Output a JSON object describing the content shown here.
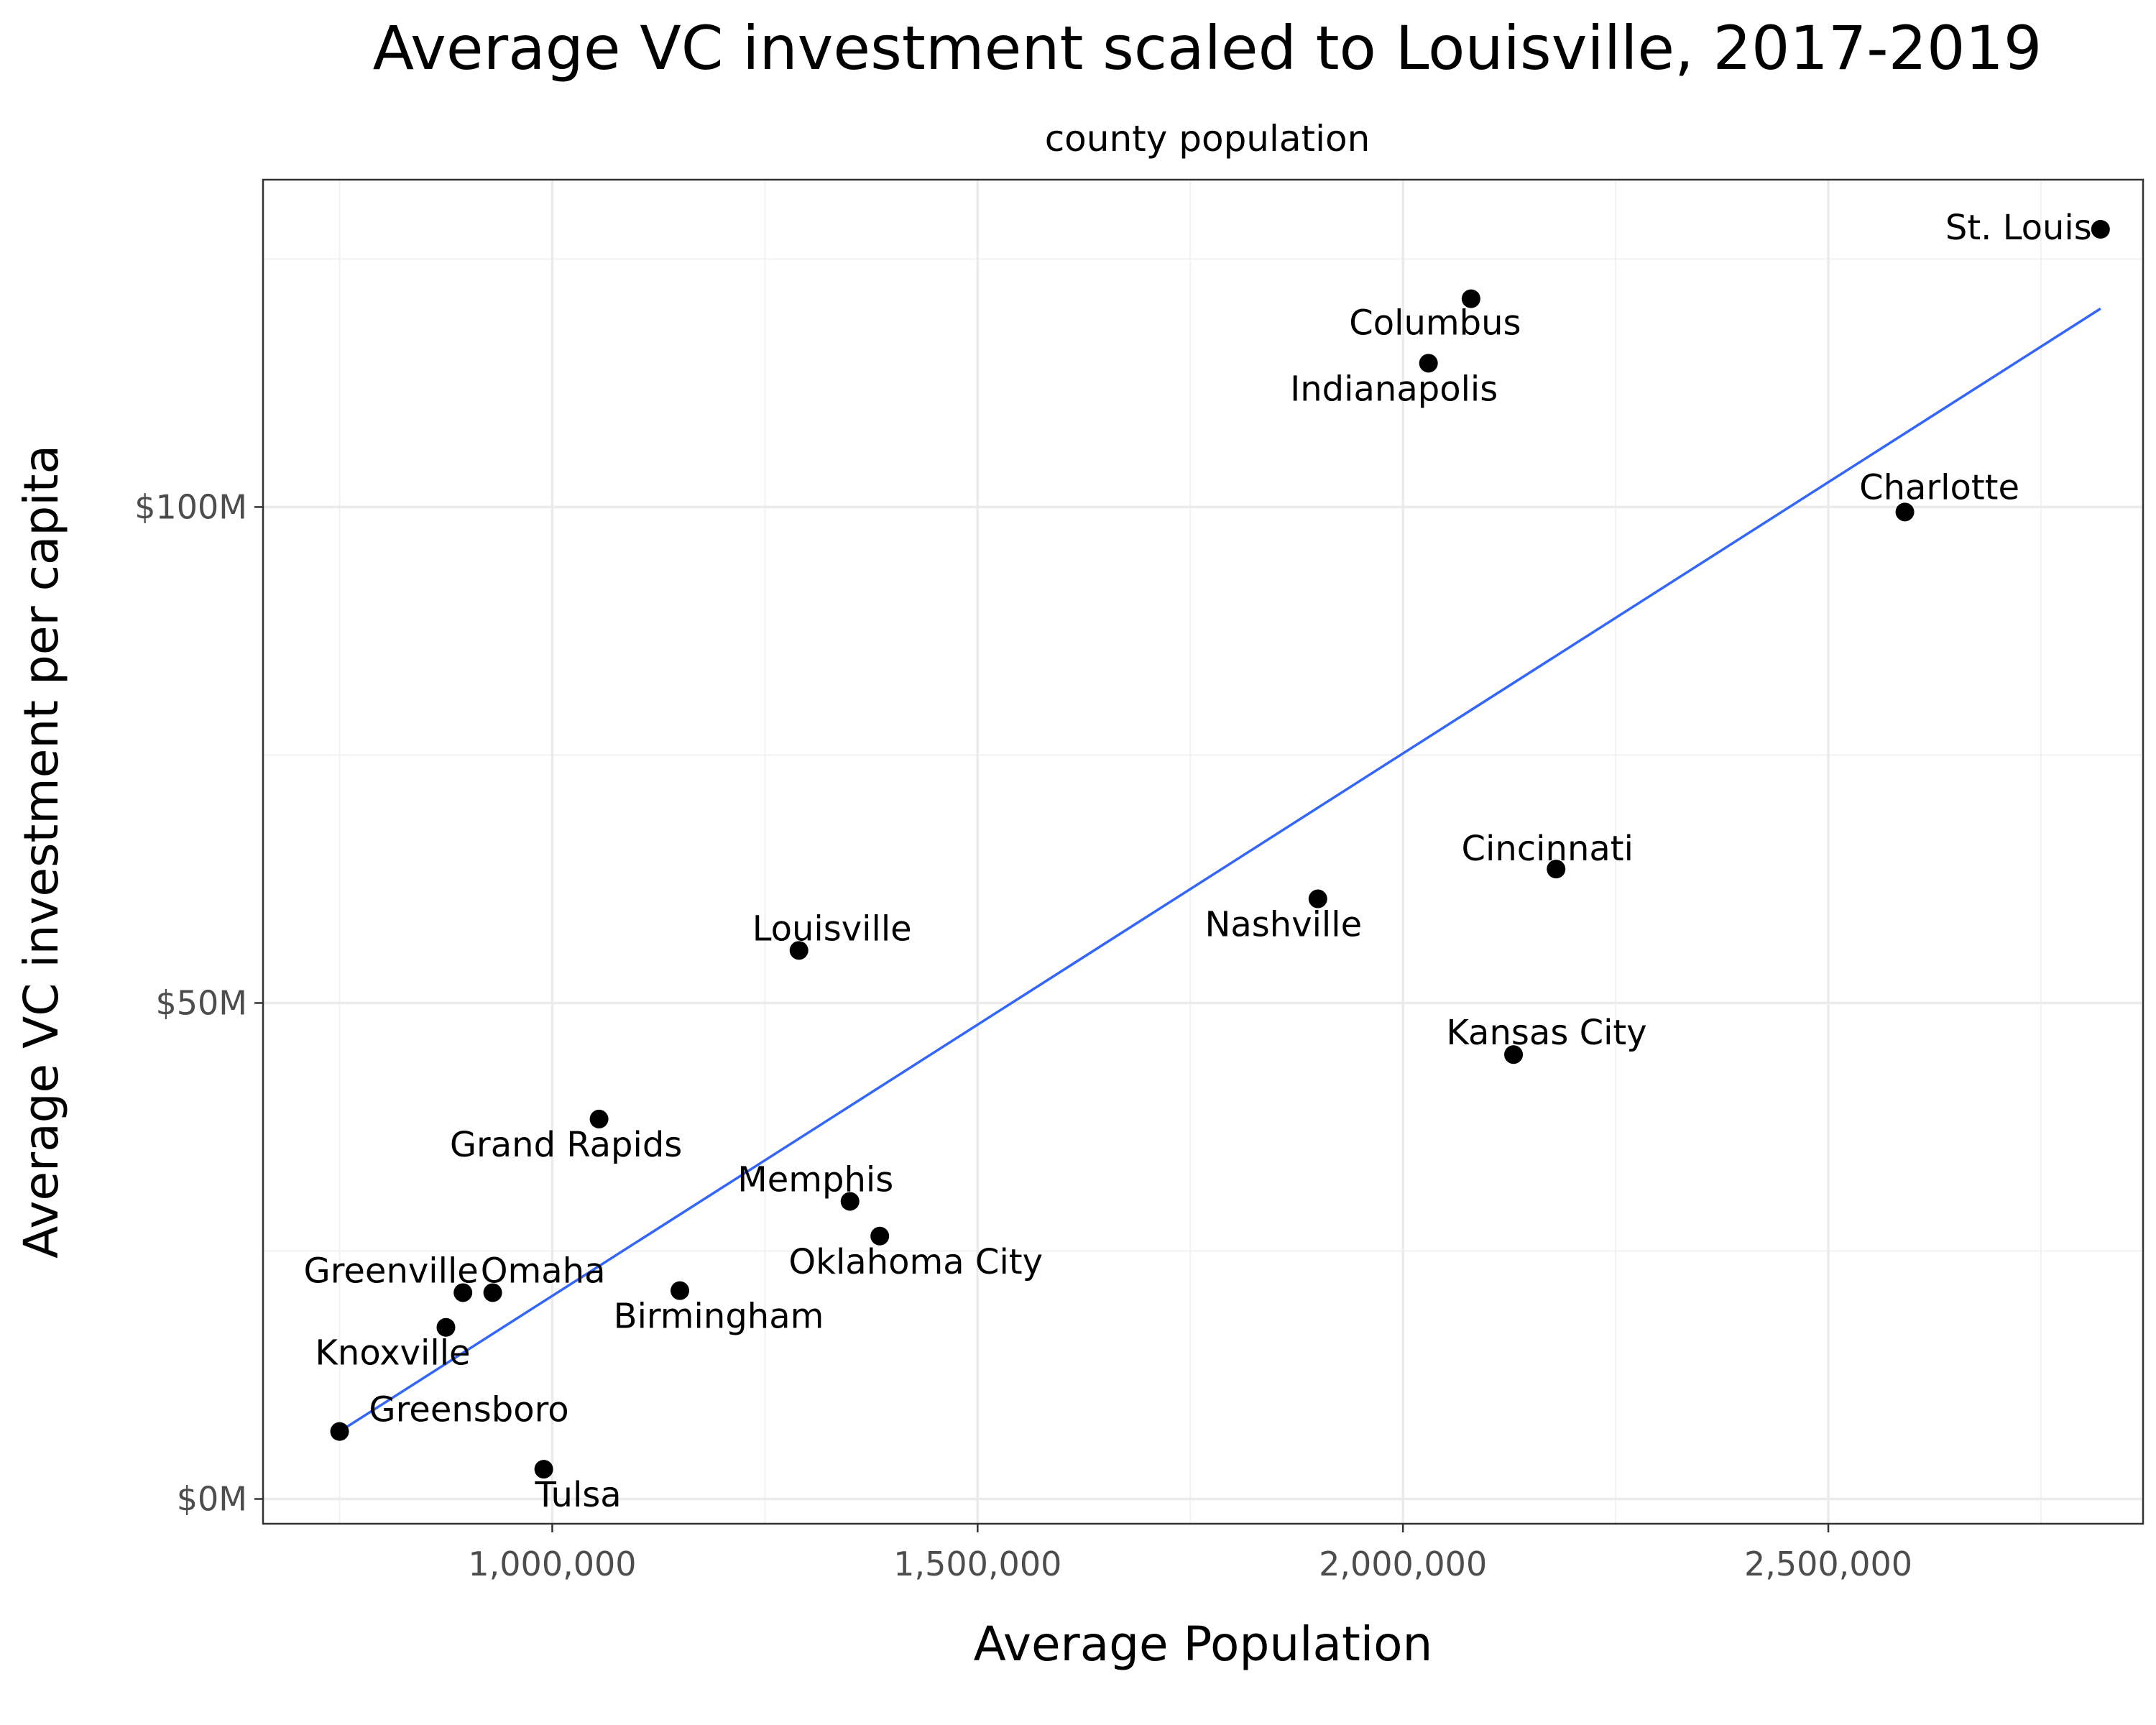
{
  "chart_data": {
    "type": "scatter",
    "title": "Average VC investment scaled to Louisville, 2017-2019",
    "subtitle": "county population",
    "xlabel": "Average Population",
    "ylabel": "Average VC investment per capita",
    "xlim": [
      660000,
      2870000
    ],
    "ylim": [
      -2500000,
      133000000
    ],
    "x_ticks": [
      1000000,
      1500000,
      2000000,
      2500000
    ],
    "x_tick_labels": [
      "1,000,000",
      "1,500,000",
      "2,000,000",
      "2,500,000"
    ],
    "y_ticks": [
      0,
      50000000,
      100000000
    ],
    "y_tick_labels": [
      "$0M",
      "$50M",
      "$100M"
    ],
    "grid": true,
    "trend_line": {
      "x": [
        750000,
        2820000
      ],
      "y": [
        6800000,
        120000000
      ],
      "color": "#3366ff"
    },
    "point_color": "#000000",
    "points": [
      {
        "label": "St. Louis",
        "x": 2820000,
        "y": 128000000
      },
      {
        "label": "Columbus",
        "x": 2080000,
        "y": 121000000
      },
      {
        "label": "Indianapolis",
        "x": 2030000,
        "y": 114500000
      },
      {
        "label": "Charlotte",
        "x": 2590000,
        "y": 99500000
      },
      {
        "label": "Cincinnati",
        "x": 2180000,
        "y": 63500000
      },
      {
        "label": "Nashville",
        "x": 1900000,
        "y": 60500000
      },
      {
        "label": "Louisville",
        "x": 1290000,
        "y": 55300000
      },
      {
        "label": "Kansas City",
        "x": 2130000,
        "y": 44800000
      },
      {
        "label": "Grand Rapids",
        "x": 1055000,
        "y": 38300000
      },
      {
        "label": "Memphis",
        "x": 1350000,
        "y": 30000000
      },
      {
        "label": "Oklahoma City",
        "x": 1385000,
        "y": 26500000
      },
      {
        "label": "Birmingham",
        "x": 1150000,
        "y": 21000000
      },
      {
        "label": "Greenville",
        "x": 895000,
        "y": 20800000
      },
      {
        "label": "Omaha",
        "x": 930000,
        "y": 20800000
      },
      {
        "label": "Knoxville",
        "x": 875000,
        "y": 17300000
      },
      {
        "label": "Greensboro",
        "x": 750000,
        "y": 6800000
      },
      {
        "label": "Tulsa",
        "x": 990000,
        "y": 3000000
      }
    ]
  }
}
